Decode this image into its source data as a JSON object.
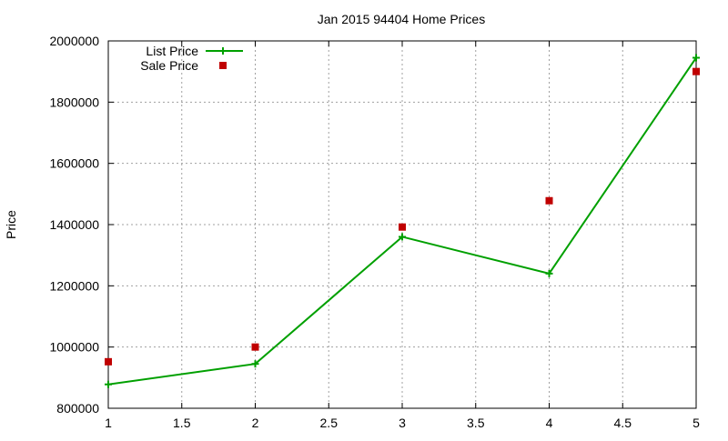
{
  "chart_data": {
    "type": "line",
    "title": "Jan 2015 94404 Home Prices",
    "xlabel": "",
    "ylabel": "Price",
    "xlim": [
      1,
      5
    ],
    "ylim": [
      800000,
      2000000
    ],
    "x_ticks": [
      1,
      1.5,
      2,
      2.5,
      3,
      3.5,
      4,
      4.5,
      5
    ],
    "x_tick_labels": [
      "1",
      "1.5",
      "2",
      "2.5",
      "3",
      "3.5",
      "4",
      "4.5",
      "5"
    ],
    "y_ticks": [
      800000,
      1000000,
      1200000,
      1400000,
      1600000,
      1800000,
      2000000
    ],
    "y_tick_labels": [
      "800000",
      "1000000",
      "1200000",
      "1400000",
      "1600000",
      "1800000",
      "2000000"
    ],
    "grid": true,
    "legend_position": "top-left",
    "series": [
      {
        "name": "List Price",
        "style": "linespoints",
        "marker": "plus",
        "color": "#00a000",
        "x": [
          1,
          2,
          3,
          4,
          5
        ],
        "values": [
          878000,
          945000,
          1360000,
          1240000,
          1945000
        ]
      },
      {
        "name": "Sale Price",
        "style": "points",
        "marker": "square",
        "color": "#c00000",
        "x": [
          1,
          2,
          3,
          4,
          5
        ],
        "values": [
          952000,
          1000000,
          1392000,
          1478000,
          1900000
        ]
      }
    ]
  }
}
